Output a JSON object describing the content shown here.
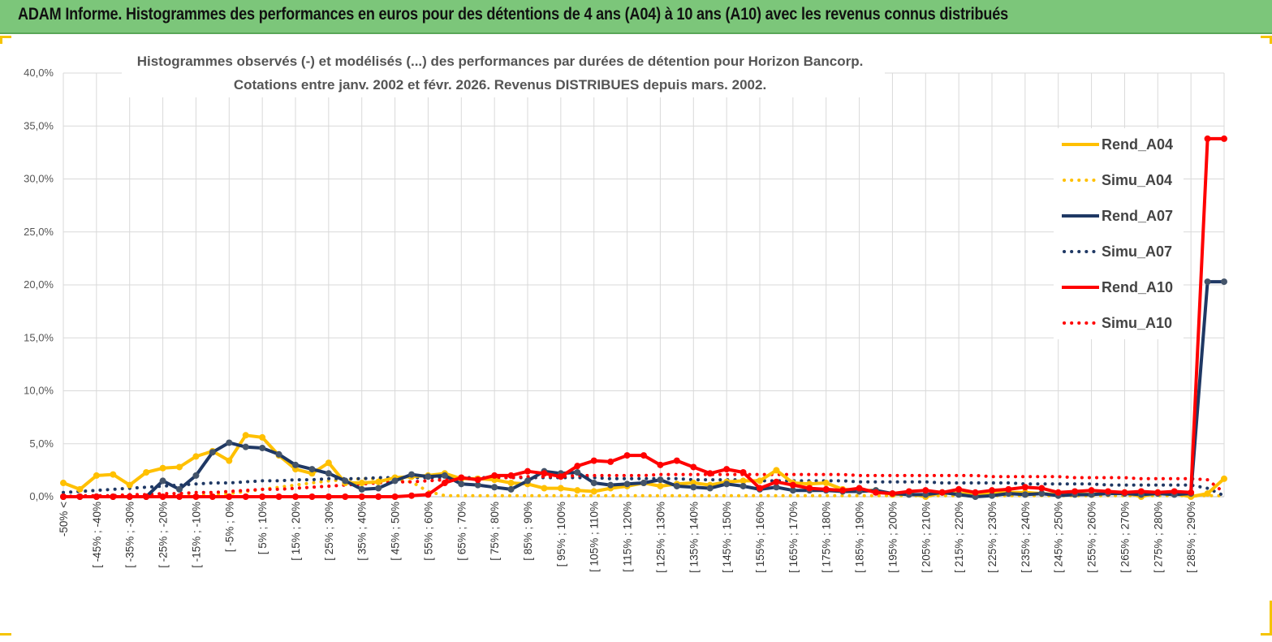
{
  "banner": {
    "title": "ADAM Informe. Histogrammes des performances en euros pour des détentions de 4 ans (A04) à 10 ans (A10) avec les revenus connus distribués"
  },
  "colors": {
    "banner_bg": "#7cc67a",
    "accent": "#f5c400",
    "rend_a04": "#ffc000",
    "rend_a07": "#1f3864",
    "rend_a10": "#ff0000"
  },
  "chart_data": {
    "type": "line",
    "title_line1": "Histogrammes observés (-) et modélisés (...) des performances par durées de détention pour Horizon Bancorp.",
    "title_line2": "Cotations entre janv. 2002 et févr. 2026. Revenus DISTRIBUES depuis mars. 2002.",
    "ylim": [
      0,
      40
    ],
    "yticks": [
      "0,0%",
      "5,0%",
      "10,0%",
      "15,0%",
      "20,0%",
      "25,0%",
      "30,0%",
      "35,0%",
      "40,0%"
    ],
    "grid": true,
    "legend_position": "right",
    "categories": [
      "-50% <",
      "[ -50% ; -45%",
      "[ -45% ; -40%",
      "[ -40% ; -35%",
      "[ -35% ; -30%",
      "[ -30% ; -25%",
      "[ -25% ; -20%",
      "[ -20% ; -15%",
      "[ -15% ; -10%",
      "[ -10% ; -5%",
      "[ -5% ; 0%",
      "[ 0% ; 5%",
      "[ 5% ; 10%",
      "[ 10% ; 15%",
      "[ 15% ; 20%",
      "[ 20% ; 25%",
      "[ 25% ; 30%",
      "[ 30% ; 35%",
      "[ 35% ; 40%",
      "[ 40% ; 45%",
      "[ 45% ; 50%",
      "[ 50% ; 55%",
      "[ 55% ; 60%",
      "[ 60% ; 65%",
      "[ 65% ; 70%",
      "[ 70% ; 75%",
      "[ 75% ; 80%",
      "[ 80% ; 85%",
      "[ 85% ; 90%",
      "[ 90% ; 95%",
      "[ 95% ; 100%",
      "[ 100% ; 105%",
      "[ 105% ; 110%",
      "[ 110% ; 115%",
      "[ 115% ; 120%",
      "[ 120% ; 125%",
      "[ 125% ; 130%",
      "[ 130% ; 135%",
      "[ 135% ; 140%",
      "[ 140% ; 145%",
      "[ 145% ; 150%",
      "[ 150% ; 155%",
      "[ 155% ; 160%",
      "[ 160% ; 165%",
      "[ 165% ; 170%",
      "[ 170% ; 175%",
      "[ 175% ; 180%",
      "[ 180% ; 185%",
      "[ 185% ; 190%",
      "[ 190% ; 195%",
      "[ 195% ; 200%",
      "[ 200% ; 205%",
      "[ 205% ; 210%",
      "[ 210% ; 215%",
      "[ 215% ; 220%",
      "[ 220% ; 225%",
      "[ 225% ; 230%",
      "[ 230% ; 235%",
      "[ 235% ; 240%",
      "[ 240% ; 245%",
      "[ 245% ; 250%",
      "[ 250% ; 255%",
      "[ 255% ; 260%",
      "[ 260% ; 265%",
      "[ 265% ; 270%",
      "[ 270% ; 275%",
      "[ 275% ; 280%",
      "[ 280% ; 285%",
      "[ 285% ; 290%",
      "[ 290% ; 295%",
      ">= 295%"
    ],
    "visible_tick_labels": [
      "-50% <",
      "[ -45% ; -40%",
      "[ -35% ; -30%",
      "[ -25% ; -20%",
      "[ -15% ; -10%",
      "[ -5% ; 0%",
      "[ 5% ; 10%",
      "[ 15% ; 20%",
      "[ 25% ; 30%",
      "[ 35% ; 40%",
      "[ 45% ; 50%",
      "[ 55% ; 60%",
      "[ 65% ; 70%",
      "[ 75% ; 80%",
      "[ 85% ; 90%",
      "[ 95% ; 100%",
      "[ 105% ; 110%",
      "[ 115% ; 120%",
      "[ 125% ; 130%",
      "[ 135% ; 140%",
      "[ 145% ; 150%",
      "[ 155% ; 160%",
      "[ 165% ; 170%",
      "[ 175% ; 180%",
      "[ 185% ; 190%",
      "[ 195% ; 200%",
      "[ 205% ; 210%",
      "[ 215% ; 220%",
      "[ 225% ; 230%",
      "[ 235% ; 240%",
      "[ 245% ; 250%",
      "[ 255% ; 260%",
      "[ 265% ; 270%",
      "[ 275% ; 280%",
      "[ 285% ; 290%"
    ],
    "series": [
      {
        "name": "Rend_A04",
        "style": "solid",
        "color": "#ffc000",
        "values": [
          1.3,
          0.7,
          2.0,
          2.1,
          1.1,
          2.3,
          2.7,
          2.8,
          3.8,
          4.3,
          3.4,
          5.8,
          5.6,
          3.9,
          2.6,
          2.2,
          3.2,
          1.3,
          1.3,
          1.4,
          1.8,
          1.9,
          2.0,
          2.2,
          1.7,
          1.7,
          1.6,
          1.3,
          1.2,
          0.8,
          0.8,
          0.6,
          0.5,
          0.8,
          1.0,
          1.3,
          1.0,
          1.2,
          1.3,
          1.1,
          1.4,
          1.5,
          1.5,
          2.5,
          1.3,
          1.2,
          1.3,
          0.7,
          0.6,
          0.6,
          0.2,
          0.3,
          0.0,
          0.4,
          0.3,
          0.3,
          0.3,
          0.4,
          0.4,
          0.3,
          0.2,
          0.3,
          0.2,
          0.4,
          0.4,
          0.0,
          0.4,
          0.3,
          0.0,
          0.3,
          1.7
        ]
      },
      {
        "name": "Simu_A04",
        "style": "dotted",
        "color": "#ffc000",
        "values": [
          0.0,
          0.0,
          0.0,
          0.0,
          0.0,
          0.0,
          0.1,
          0.1,
          0.1,
          0.2,
          0.3,
          0.5,
          0.7,
          0.9,
          1.1,
          1.3,
          1.5,
          1.6,
          1.7,
          1.7,
          1.6,
          1.4,
          0.5,
          0.1,
          0.1,
          0.1,
          0.1,
          0.1,
          0.1,
          0.1,
          0.1,
          0.1,
          0.1,
          0.1,
          0.1,
          0.1,
          0.1,
          0.1,
          0.1,
          0.1,
          0.1,
          0.1,
          0.1,
          0.1,
          0.1,
          0.1,
          0.1,
          0.1,
          0.1,
          0.1,
          0.1,
          0.1,
          0.1,
          0.1,
          0.1,
          0.1,
          0.1,
          0.1,
          0.1,
          0.1,
          0.1,
          0.1,
          0.1,
          0.1,
          0.1,
          0.1,
          0.1,
          0.1,
          0.1,
          0.1,
          0.1
        ]
      },
      {
        "name": "Rend_A07",
        "style": "solid",
        "color": "#1f3864",
        "values": [
          0.0,
          0.0,
          0.0,
          0.0,
          0.0,
          0.0,
          1.5,
          0.7,
          2.0,
          4.2,
          5.1,
          4.7,
          4.6,
          4.0,
          3.0,
          2.6,
          2.2,
          1.5,
          0.7,
          0.8,
          1.5,
          2.1,
          1.9,
          2.0,
          1.2,
          1.1,
          0.9,
          0.7,
          1.5,
          2.4,
          2.2,
          2.3,
          1.3,
          1.1,
          1.2,
          1.3,
          1.6,
          1.0,
          0.9,
          0.8,
          1.2,
          1.0,
          0.7,
          0.9,
          0.6,
          0.6,
          0.6,
          0.5,
          0.5,
          0.6,
          0.3,
          0.2,
          0.2,
          0.4,
          0.2,
          0.0,
          0.1,
          0.3,
          0.2,
          0.3,
          0.1,
          0.2,
          0.2,
          0.3,
          0.3,
          0.2,
          0.3,
          0.2,
          0.3,
          20.3,
          20.3
        ]
      },
      {
        "name": "Simu_A07",
        "style": "dotted",
        "color": "#1f3864",
        "values": [
          0.4,
          0.5,
          0.6,
          0.7,
          0.8,
          0.9,
          1.0,
          1.1,
          1.2,
          1.3,
          1.3,
          1.4,
          1.5,
          1.5,
          1.6,
          1.6,
          1.7,
          1.7,
          1.7,
          1.8,
          1.8,
          1.8,
          1.8,
          1.8,
          1.8,
          1.8,
          1.8,
          1.8,
          1.8,
          1.8,
          1.8,
          1.8,
          1.8,
          1.7,
          1.7,
          1.7,
          1.7,
          1.7,
          1.6,
          1.6,
          1.6,
          1.6,
          1.5,
          1.5,
          1.5,
          1.5,
          1.5,
          1.5,
          1.4,
          1.4,
          1.4,
          1.4,
          1.4,
          1.3,
          1.3,
          1.3,
          1.3,
          1.3,
          1.2,
          1.2,
          1.2,
          1.2,
          1.2,
          1.1,
          1.1,
          1.1,
          1.1,
          1.1,
          1.1,
          0.8,
          0.1
        ]
      },
      {
        "name": "Rend_A10",
        "style": "solid",
        "color": "#ff0000",
        "values": [
          0.0,
          0.0,
          0.0,
          0.0,
          0.0,
          0.0,
          0.0,
          0.0,
          0.0,
          0.0,
          0.0,
          0.0,
          0.0,
          0.0,
          0.0,
          0.0,
          0.0,
          0.0,
          0.0,
          0.0,
          0.0,
          0.1,
          0.2,
          1.3,
          1.8,
          1.6,
          2.0,
          2.0,
          2.4,
          2.2,
          1.9,
          2.9,
          3.4,
          3.3,
          3.9,
          3.9,
          3.0,
          3.4,
          2.8,
          2.2,
          2.6,
          2.3,
          0.8,
          1.4,
          1.1,
          0.8,
          0.7,
          0.6,
          0.8,
          0.4,
          0.3,
          0.5,
          0.6,
          0.4,
          0.7,
          0.4,
          0.6,
          0.7,
          0.9,
          0.8,
          0.4,
          0.5,
          0.6,
          0.5,
          0.4,
          0.5,
          0.4,
          0.5,
          0.4,
          33.8,
          33.8
        ]
      },
      {
        "name": "Simu_A10",
        "style": "dotted",
        "color": "#ff0000",
        "values": [
          0.0,
          0.1,
          0.1,
          0.1,
          0.2,
          0.2,
          0.3,
          0.3,
          0.4,
          0.4,
          0.5,
          0.6,
          0.7,
          0.7,
          0.8,
          0.9,
          1.0,
          1.1,
          1.2,
          1.3,
          1.4,
          1.4,
          1.5,
          1.6,
          1.7,
          1.7,
          1.8,
          1.8,
          1.9,
          1.9,
          1.9,
          2.0,
          2.0,
          2.0,
          2.0,
          2.0,
          2.1,
          2.1,
          2.1,
          2.1,
          2.1,
          2.1,
          2.1,
          2.1,
          2.1,
          2.1,
          2.1,
          2.1,
          2.0,
          2.0,
          2.0,
          2.0,
          2.0,
          2.0,
          2.0,
          2.0,
          1.9,
          1.9,
          1.9,
          1.9,
          1.9,
          1.8,
          1.8,
          1.8,
          1.8,
          1.7,
          1.7,
          1.7,
          1.7,
          1.6,
          0.4
        ]
      }
    ]
  }
}
